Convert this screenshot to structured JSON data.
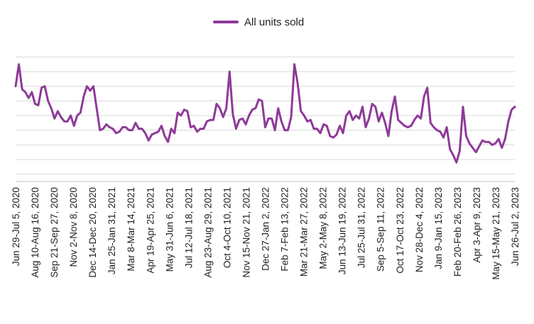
{
  "chart_data": {
    "type": "line",
    "title": "",
    "xlabel": "",
    "ylabel": "",
    "legend": {
      "position": "top-center"
    },
    "grid": {
      "horizontal": true,
      "vertical": false
    },
    "color": "#8e3a98",
    "tick_labels": [
      "Jun 29-Jul 5, 2020",
      "Aug 10-Aug 16, 2020",
      "Sep 21-Sep 27, 2020",
      "Nov 2-Nov 8, 2020",
      "Dec 14-Dec 20, 2020",
      "Jan 25-Jan 31, 2021",
      "Mar 8-Mar 14, 2021",
      "Apr 19-Apr 25, 2021",
      "May 31-Jun 6, 2021",
      "Jul 12-Jul 18, 2021",
      "Aug 23-Aug 29, 2021",
      "Oct 4-Oct 10, 2021",
      "Nov 15-Nov 21, 2021",
      "Dec 27-Jan 2, 2022",
      "Feb 7-Feb 13, 2022",
      "Mar 21-Mar 27, 2022",
      "May 2-May 8, 2022",
      "Jun 13-Jun 19, 2022",
      "Jul 25-Jul 31, 2022",
      "Sep 5-Sep 11, 2022",
      "Oct 17-Oct 23, 2022",
      "Nov 28-Dec 4, 2022",
      "Jan 9-Jan 15, 2023",
      "Feb 20-Feb 26, 2023",
      "Apr 3-Apr 9, 2023",
      "May 15-May 21, 2023",
      "Jun 26-Jul 2, 2023"
    ],
    "series": [
      {
        "name": "All units sold",
        "values": [
          6.0,
          7.5,
          5.8,
          5.6,
          5.2,
          5.6,
          4.8,
          4.7,
          5.9,
          6.0,
          5.0,
          4.5,
          3.8,
          4.3,
          3.9,
          3.6,
          3.6,
          4.0,
          3.3,
          4.0,
          4.2,
          5.3,
          6.0,
          5.7,
          6.0,
          4.5,
          3.0,
          3.1,
          3.4,
          3.2,
          3.1,
          2.8,
          2.9,
          3.2,
          3.2,
          3.0,
          3.0,
          3.5,
          3.1,
          3.1,
          2.8,
          2.3,
          2.7,
          2.8,
          2.9,
          3.3,
          2.6,
          2.2,
          3.1,
          2.8,
          4.2,
          4.0,
          4.4,
          4.3,
          3.2,
          3.3,
          2.9,
          3.1,
          3.1,
          3.6,
          3.7,
          3.7,
          4.8,
          4.5,
          3.9,
          4.5,
          7.0,
          4.1,
          3.1,
          3.7,
          3.8,
          3.4,
          4.0,
          4.4,
          4.5,
          5.1,
          5.0,
          3.2,
          3.8,
          3.8,
          3.0,
          4.5,
          3.6,
          3.0,
          3.0,
          3.9,
          7.5,
          6.2,
          4.3,
          4.0,
          3.6,
          3.7,
          3.1,
          3.1,
          2.8,
          3.4,
          3.3,
          2.6,
          2.5,
          2.7,
          3.3,
          2.8,
          4.0,
          4.3,
          3.7,
          4.0,
          3.8,
          4.6,
          3.2,
          3.8,
          4.8,
          4.6,
          3.6,
          4.2,
          3.5,
          2.6,
          4.3,
          5.3,
          3.7,
          3.5,
          3.3,
          3.2,
          3.3,
          3.7,
          4.0,
          3.8,
          5.3,
          5.9,
          3.5,
          3.2,
          3.0,
          2.9,
          2.5,
          3.2,
          1.7,
          1.3,
          0.8,
          1.6,
          4.6,
          2.6,
          2.1,
          1.8,
          1.5,
          1.9,
          2.3,
          2.2,
          2.2,
          2.0,
          2.1,
          2.4,
          1.8,
          2.4,
          3.6,
          4.4,
          4.6
        ]
      }
    ],
    "ylim": [
      -0.5,
      8.5
    ]
  }
}
